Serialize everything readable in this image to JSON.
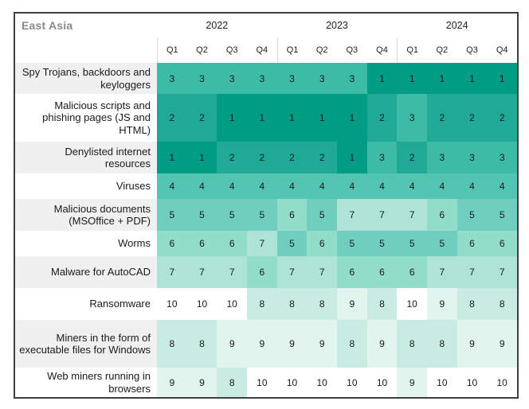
{
  "title": "East Asia",
  "chart_data": {
    "type": "heatmap",
    "title": "East Asia",
    "years": [
      "2022",
      "2023",
      "2024"
    ],
    "quarters": [
      "Q1",
      "Q2",
      "Q3",
      "Q4"
    ],
    "columns": [
      "2022 Q1",
      "2022 Q2",
      "2022 Q3",
      "2022 Q4",
      "2023 Q1",
      "2023 Q2",
      "2023 Q3",
      "2023 Q4",
      "2024 Q1",
      "2024 Q2",
      "2024 Q3",
      "2024 Q4"
    ],
    "value_min": 1,
    "value_max": 10,
    "value_meaning": "rank",
    "rows": [
      {
        "label": "Spy Trojans, backdoors and keyloggers",
        "values": [
          3,
          3,
          3,
          3,
          3,
          3,
          3,
          1,
          1,
          1,
          1,
          1
        ]
      },
      {
        "label": "Malicious scripts and phishing pages (JS and HTML)",
        "values": [
          2,
          2,
          1,
          1,
          1,
          1,
          1,
          2,
          3,
          2,
          2,
          2
        ]
      },
      {
        "label": "Denylisted internet resources",
        "values": [
          1,
          1,
          2,
          2,
          2,
          2,
          1,
          3,
          2,
          3,
          3,
          3
        ]
      },
      {
        "label": "Viruses",
        "values": [
          4,
          4,
          4,
          4,
          4,
          4,
          4,
          4,
          4,
          4,
          4,
          4
        ]
      },
      {
        "label": "Malicious documents (MSOffice + PDF)",
        "values": [
          5,
          5,
          5,
          5,
          6,
          5,
          7,
          7,
          7,
          6,
          5,
          5
        ]
      },
      {
        "label": "Worms",
        "values": [
          6,
          6,
          6,
          7,
          5,
          6,
          5,
          5,
          5,
          5,
          6,
          6
        ]
      },
      {
        "label": "Malware for AutoCAD",
        "values": [
          7,
          7,
          7,
          6,
          7,
          7,
          6,
          6,
          6,
          7,
          7,
          7
        ]
      },
      {
        "label": "Ransomware",
        "values": [
          10,
          10,
          10,
          8,
          8,
          8,
          9,
          8,
          10,
          9,
          8,
          8
        ]
      },
      {
        "label": "Miners in the form of executable files for Windows",
        "values": [
          8,
          8,
          9,
          9,
          9,
          9,
          8,
          9,
          8,
          8,
          9,
          9
        ]
      },
      {
        "label": "Web miners running in browsers",
        "values": [
          9,
          9,
          8,
          10,
          10,
          10,
          10,
          10,
          9,
          10,
          10,
          10
        ]
      }
    ],
    "rank_colors": {
      "1": "#009c83",
      "2": "#20aa95",
      "3": "#3cbba6",
      "4": "#55c5b3",
      "5": "#6fcebd",
      "6": "#92dcca",
      "7": "#aee4d7",
      "8": "#c8ece1",
      "9": "#e1f4ed",
      "10": "#ffffff"
    },
    "layout": {
      "legend": "none",
      "grid": "off",
      "label_stripe_color": "#f0f0f0",
      "frame_border_color": "#3f3f3f"
    }
  }
}
